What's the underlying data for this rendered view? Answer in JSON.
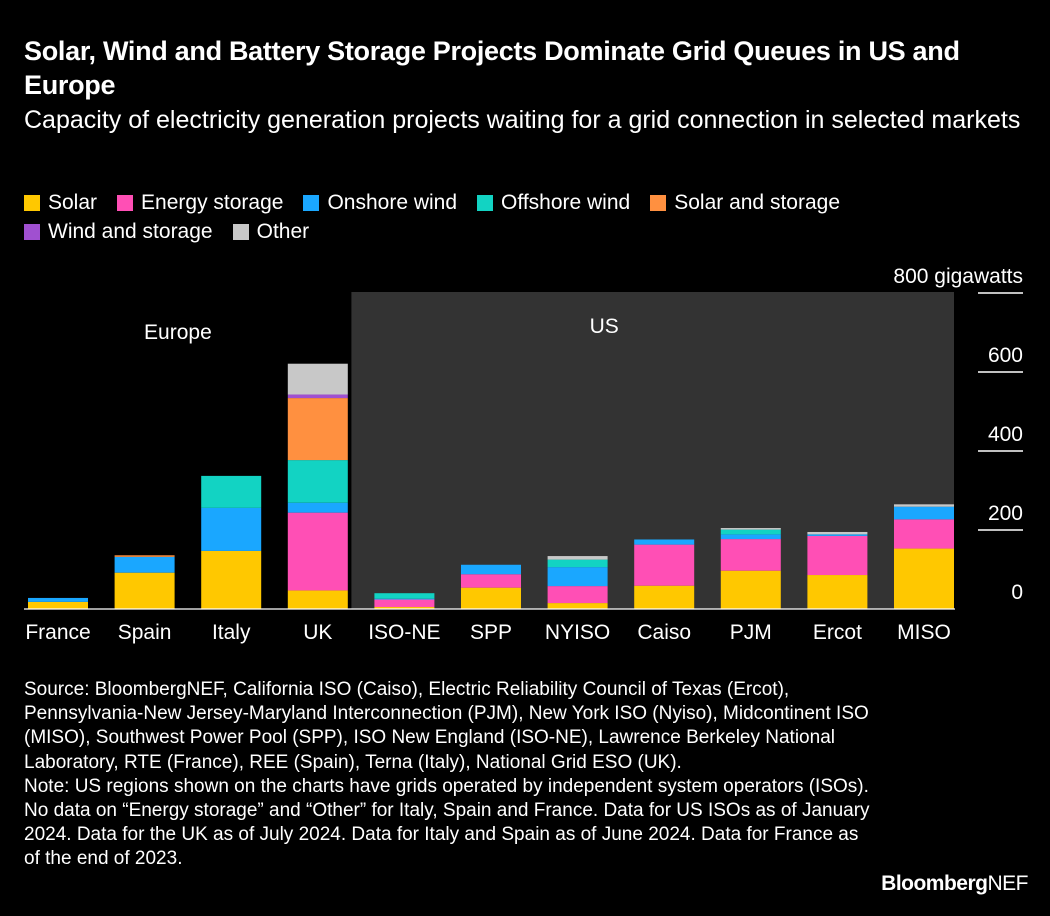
{
  "header": {
    "title": "Solar, Wind and Battery Storage Projects Dominate Grid Queues in US and Europe",
    "subtitle": "Capacity of electricity generation projects waiting for a grid connection in selected markets"
  },
  "chart_data": {
    "type": "bar",
    "stacked": true,
    "title": "Solar, Wind and Battery Storage Projects Dominate Grid Queues in US and Europe",
    "subtitle": "Capacity of electricity generation projects waiting for a grid connection in selected markets",
    "categories": [
      "France",
      "Spain",
      "Italy",
      "UK",
      "ISO-NE",
      "SPP",
      "NYISO",
      "Caiso",
      "PJM",
      "Ercot",
      "MISO"
    ],
    "groups": [
      {
        "label": "Europe",
        "categories": [
          "France",
          "Spain",
          "Italy",
          "UK"
        ],
        "shaded": false
      },
      {
        "label": "US",
        "categories": [
          "ISO-NE",
          "SPP",
          "NYISO",
          "Caiso",
          "PJM",
          "Ercot",
          "MISO"
        ],
        "shaded": true
      }
    ],
    "unit": "gigawatts",
    "ylim": [
      0,
      800
    ],
    "yticks": [
      {
        "value": 0,
        "label": "0"
      },
      {
        "value": 200,
        "label": "200"
      },
      {
        "value": 400,
        "label": "400"
      },
      {
        "value": 600,
        "label": "600"
      },
      {
        "value": 800,
        "label": "800 gigawatts"
      }
    ],
    "axis_position": "right",
    "legend_position": "top",
    "series": [
      {
        "name": "Solar",
        "color": "#ffc800",
        "values": [
          18,
          92,
          147,
          47,
          5,
          54,
          15,
          59,
          97,
          86,
          153
        ]
      },
      {
        "name": "Energy storage",
        "color": "#ff4fb5",
        "values": [
          0,
          0,
          0,
          197,
          19,
          34,
          43,
          104,
          80,
          99,
          74
        ]
      },
      {
        "name": "Onshore wind",
        "color": "#1aa7ff",
        "values": [
          10,
          40,
          109,
          25,
          2,
          24,
          48,
          13,
          12,
          4,
          32
        ]
      },
      {
        "name": "Offshore wind",
        "color": "#12d3c3",
        "values": [
          0,
          0,
          81,
          108,
          14,
          0,
          19,
          0,
          12,
          0,
          0
        ]
      },
      {
        "name": "Solar and storage",
        "color": "#ff9040",
        "values": [
          0,
          4,
          0,
          157,
          0,
          0,
          0,
          0,
          0,
          0,
          0
        ]
      },
      {
        "name": "Wind and storage",
        "color": "#a050d0",
        "values": [
          0,
          0,
          0,
          9,
          0,
          0,
          0,
          0,
          0,
          0,
          0
        ]
      },
      {
        "name": "Other",
        "color": "#c8c8c8",
        "values": [
          0,
          0,
          0,
          78,
          0,
          0,
          9,
          0,
          4,
          6,
          6
        ]
      }
    ]
  },
  "footer": {
    "source": "Source: BloombergNEF, California ISO (Caiso), Electric Reliability Council of Texas (Ercot), Pennsylvania-New Jersey-Maryland Interconnection (PJM), New York ISO (Nyiso), Midcontinent ISO (MISO), Southwest Power Pool (SPP), ISO New England (ISO-NE), Lawrence Berkeley National Laboratory, RTE (France), REE (Spain), Terna (Italy), National Grid ESO (UK).",
    "note": "Note: US regions shown on the charts have grids operated by independent system operators (ISOs). No data on “Energy storage” and “Other” for Italy, Spain and France. Data for US ISOs as of January 2024. Data for the UK as of July 2024. Data for Italy and Spain as of June 2024. Data for France as of the end of 2023.",
    "logo_bold": "Bloomberg",
    "logo_rest": "NEF"
  },
  "colors": {
    "background": "#000000",
    "text": "#ffffff",
    "us_panel": "#333333"
  }
}
